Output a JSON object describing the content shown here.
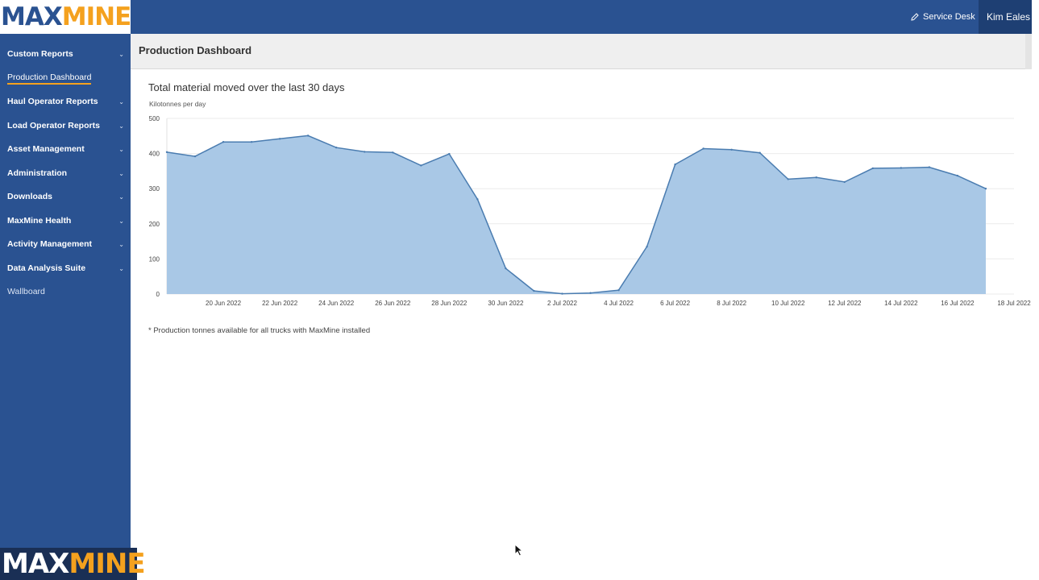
{
  "brand": {
    "logo_max": "MAX",
    "logo_mine": "MINE"
  },
  "header": {
    "service_desk": "Service Desk",
    "user_name": "Kim Eales"
  },
  "sidebar": {
    "items": [
      {
        "label": "Custom Reports",
        "expandable": true
      },
      {
        "label": "Production Dashboard",
        "expandable": false,
        "active": true
      },
      {
        "label": "Haul Operator Reports",
        "expandable": true
      },
      {
        "label": "Load Operator Reports",
        "expandable": true
      },
      {
        "label": "Asset Management",
        "expandable": true
      },
      {
        "label": "Administration",
        "expandable": true
      },
      {
        "label": "Downloads",
        "expandable": true
      },
      {
        "label": "MaxMine Health",
        "expandable": true
      },
      {
        "label": "Activity Management",
        "expandable": true
      },
      {
        "label": "Data Analysis Suite",
        "expandable": true
      },
      {
        "label": "Wallboard",
        "expandable": false
      }
    ]
  },
  "page": {
    "title": "Production Dashboard"
  },
  "chart_data": {
    "type": "area",
    "title": "Total material moved over the last 30 days",
    "ylabel": "Kilotonnes per day",
    "xlabel": "",
    "ylim": [
      0,
      500
    ],
    "yticks": [
      0,
      100,
      200,
      300,
      400,
      500
    ],
    "xlim": [
      "2022-06-18",
      "2022-07-18"
    ],
    "xticks": [
      "20 Jun 2022",
      "22 Jun 2022",
      "24 Jun 2022",
      "26 Jun 2022",
      "28 Jun 2022",
      "30 Jun 2022",
      "2 Jul 2022",
      "4 Jul 2022",
      "6 Jul 2022",
      "8 Jul 2022",
      "10 Jul 2022",
      "12 Jul 2022",
      "14 Jul 2022",
      "16 Jul 2022",
      "18 Jul 2022"
    ],
    "grid": true,
    "color": "#4a7cb0",
    "fill": "#a9c8e6",
    "x": [
      "2022-06-18",
      "2022-06-19",
      "2022-06-20",
      "2022-06-21",
      "2022-06-22",
      "2022-06-23",
      "2022-06-24",
      "2022-06-25",
      "2022-06-26",
      "2022-06-27",
      "2022-06-28",
      "2022-06-29",
      "2022-06-30",
      "2022-07-01",
      "2022-07-02",
      "2022-07-03",
      "2022-07-04",
      "2022-07-05",
      "2022-07-06",
      "2022-07-07",
      "2022-07-08",
      "2022-07-09",
      "2022-07-10",
      "2022-07-11",
      "2022-07-12",
      "2022-07-13",
      "2022-07-14",
      "2022-07-15",
      "2022-07-16",
      "2022-07-17"
    ],
    "values": [
      404,
      392,
      433,
      433,
      442,
      451,
      417,
      405,
      403,
      366,
      399,
      270,
      73,
      9,
      1,
      3,
      11,
      135,
      369,
      414,
      411,
      402,
      327,
      332,
      319,
      358,
      359,
      361,
      337,
      300
    ]
  },
  "footnote": "* Production tonnes available for all trucks with MaxMine installed",
  "bottom_logo": {
    "max": "MAX",
    "mine": "MINE"
  }
}
